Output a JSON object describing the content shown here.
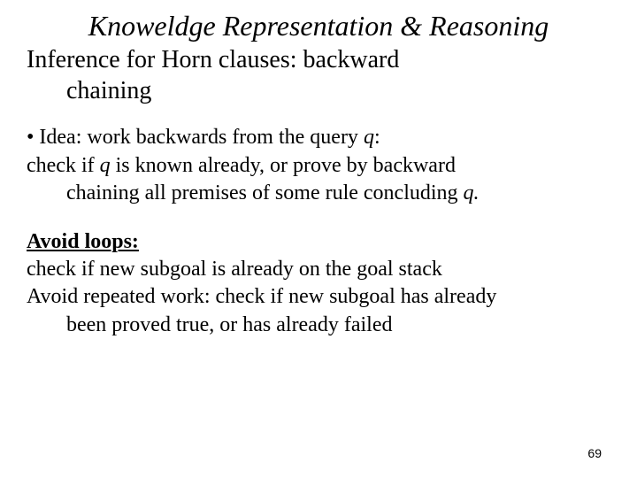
{
  "slide": {
    "title": "Knoweldge Representation & Reasoning",
    "subtitle_line1": "Inference for Horn clauses: backward",
    "subtitle_line2": "chaining",
    "bullet1_prefix": "• Idea: work backwards from the query ",
    "bullet1_var": "q",
    "bullet1_suffix": ":",
    "line2_part1": "check if ",
    "line2_var1": "q",
    "line2_part2": " is known already, or prove by backward",
    "line3_part1": "chaining all premises of some rule concluding ",
    "line3_var": "q.",
    "avoid_loops_label": "Avoid loops:",
    "avoid_loops_text": "check if new subgoal is already on the goal stack",
    "avoid_repeated_part1": "Avoid repeated work: check if new subgoal has already",
    "avoid_repeated_part2": "been proved true, or has already failed",
    "page_number": "69"
  },
  "style": {
    "background_color": "#ffffff",
    "text_color": "#000000",
    "title_fontsize": 32,
    "subtitle_fontsize": 28,
    "body_fontsize": 24,
    "page_number_fontsize": 14
  }
}
